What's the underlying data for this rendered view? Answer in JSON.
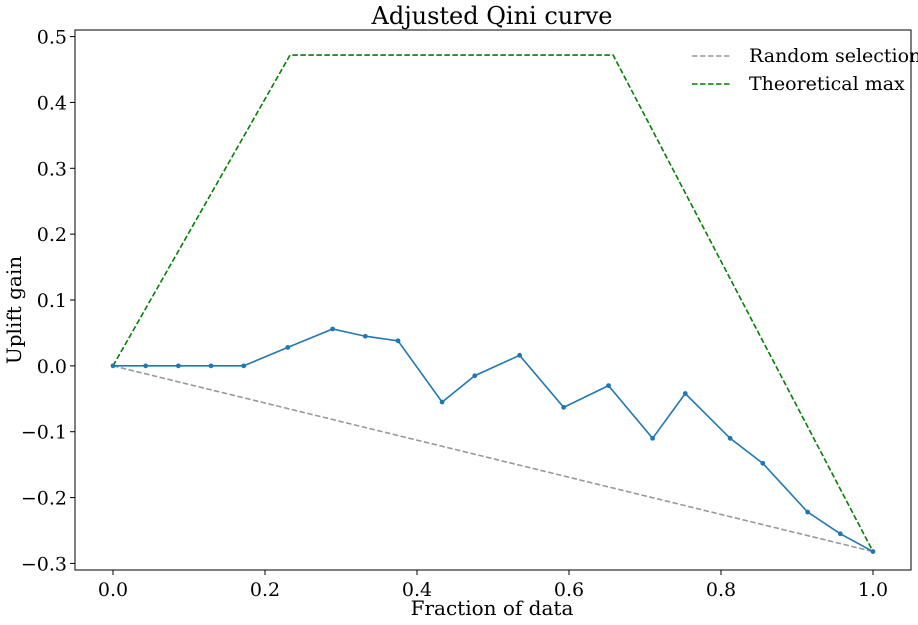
{
  "chart_data": {
    "type": "line",
    "title": "Adjusted Qini curve",
    "xlabel": "Fraction of data",
    "ylabel": "Uplift gain",
    "xlim": [
      -0.05,
      1.05
    ],
    "ylim": [
      -0.31,
      0.51
    ],
    "xticks": [
      0.0,
      0.2,
      0.4,
      0.6,
      0.8,
      1.0
    ],
    "xtick_labels": [
      "0.0",
      "0.2",
      "0.4",
      "0.6",
      "0.8",
      "1.0"
    ],
    "yticks": [
      -0.3,
      -0.2,
      -0.1,
      0.0,
      0.1,
      0.2,
      0.3,
      0.4,
      0.5
    ],
    "ytick_labels": [
      "−0.3",
      "−0.2",
      "−0.1",
      "0.0",
      "0.1",
      "0.2",
      "0.3",
      "0.4",
      "0.5"
    ],
    "legend_position": "top-right",
    "grid": false,
    "series": [
      {
        "color": "#1f77b4",
        "style": "solid",
        "markers": true,
        "x": [
          0.0,
          0.043,
          0.086,
          0.129,
          0.172,
          0.23,
          0.289,
          0.332,
          0.375,
          0.433,
          0.476,
          0.535,
          0.593,
          0.652,
          0.71,
          0.753,
          0.812,
          0.855,
          0.914,
          0.957,
          1.0
        ],
        "y": [
          0.0,
          0.0,
          0.0,
          0.0,
          0.0,
          0.028,
          0.056,
          0.045,
          0.038,
          -0.055,
          -0.015,
          0.016,
          -0.063,
          -0.03,
          -0.11,
          -0.042,
          -0.11,
          -0.148,
          -0.222,
          -0.255,
          -0.282
        ]
      },
      {
        "name": "Random selection",
        "color": "#999999",
        "style": "dashed",
        "markers": false,
        "x": [
          0.0,
          1.0
        ],
        "y": [
          0.0,
          -0.282
        ]
      },
      {
        "name": "Theoretical max",
        "color": "#008000",
        "style": "dashed",
        "markers": false,
        "x": [
          0.0,
          0.233,
          0.658,
          1.0
        ],
        "y": [
          0.0,
          0.472,
          0.472,
          -0.282
        ]
      }
    ]
  }
}
